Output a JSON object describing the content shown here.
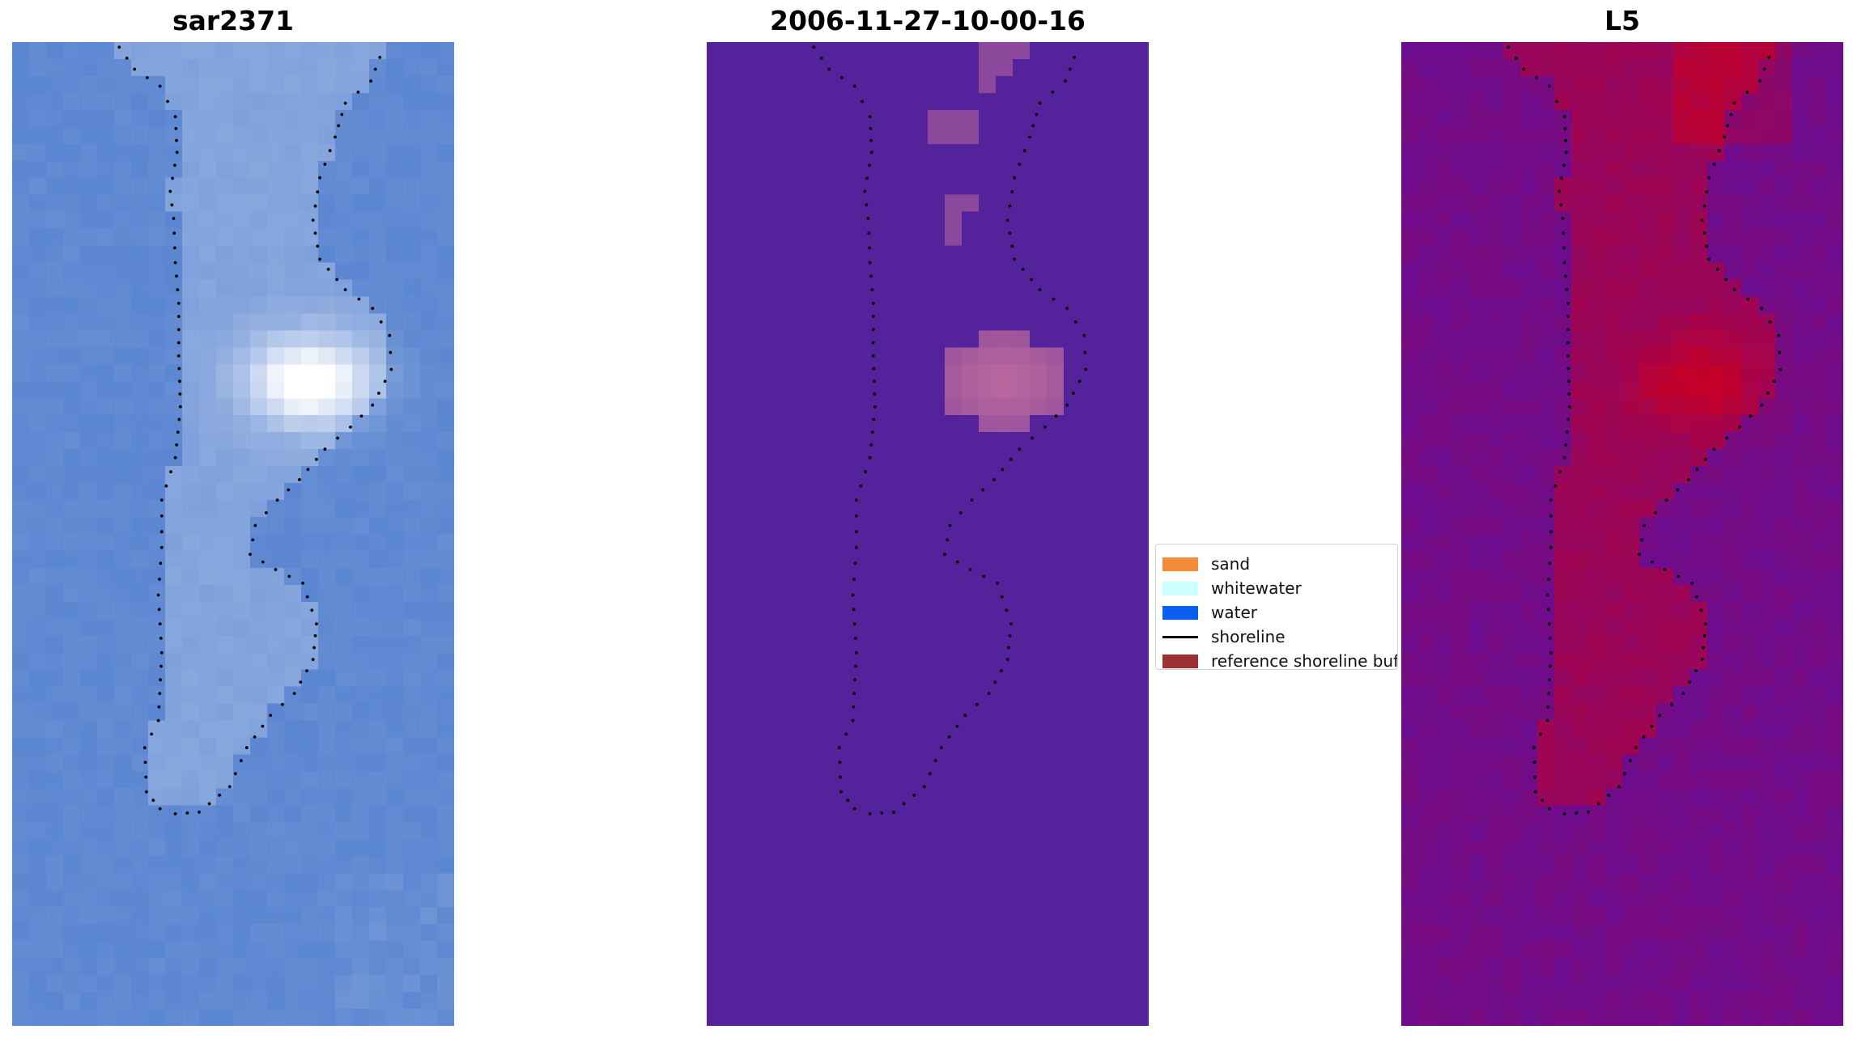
{
  "panels": [
    {
      "title": "sar2371"
    },
    {
      "title": "2006-11-27-10-00-16"
    },
    {
      "title": "L5"
    }
  ],
  "legend": {
    "items": [
      {
        "label": "sand",
        "color": "#f58a3a",
        "kind": "patch"
      },
      {
        "label": "whitewater",
        "color": "#ccffff",
        "kind": "patch"
      },
      {
        "label": "water",
        "color": "#0a5ff0",
        "kind": "patch"
      },
      {
        "label": "shoreline",
        "color": "#000000",
        "kind": "line"
      },
      {
        "label": "reference shoreline buffer",
        "color": "#9e2f35",
        "kind": "patch"
      }
    ]
  },
  "colors": {
    "rgb_base": "#5b86d1",
    "rgb_bright": "#ffffff",
    "class_background": "#54229a",
    "class_overlay": "#c4709e",
    "index_low": "#5a10a6",
    "index_high": "#c2002a",
    "shoreline_points": "#000000"
  }
}
